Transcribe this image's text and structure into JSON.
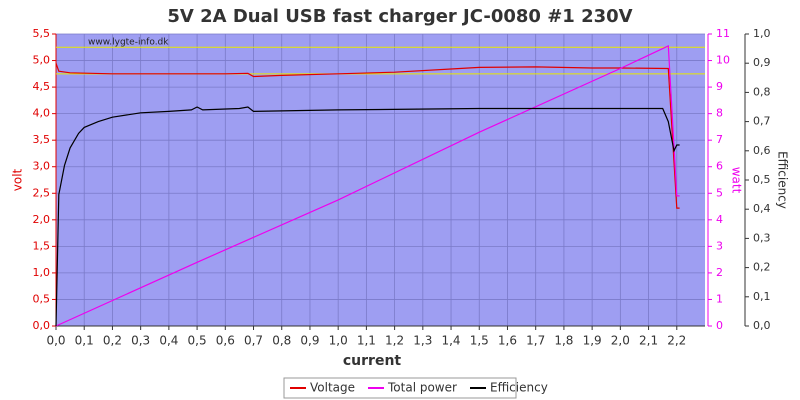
{
  "chart_data": {
    "type": "line",
    "title": "5V 2A Dual USB fast charger JC-0080 #1 230V",
    "watermark": "www.lygte-info.dk",
    "xlabel": "current",
    "ylabel": "volt",
    "y2label": "watt",
    "y3label": "Efficiency",
    "xlim": [
      0,
      2.3
    ],
    "ylim": [
      0,
      5.5
    ],
    "y2lim": [
      0,
      11
    ],
    "y3lim": [
      0,
      1.0
    ],
    "grid": true,
    "background": "#9e9ef2",
    "reference_lines": {
      "color": "#e8e800",
      "values": [
        5.25,
        4.75
      ]
    },
    "xticks": [
      {
        "value": 0,
        "label": "0,0"
      },
      {
        "value": 0.1,
        "label": "0,1"
      },
      {
        "value": 0.2,
        "label": "0,2"
      },
      {
        "value": 0.3,
        "label": "0,3"
      },
      {
        "value": 0.4,
        "label": "0,4"
      },
      {
        "value": 0.5,
        "label": "0,5"
      },
      {
        "value": 0.6,
        "label": "0,6"
      },
      {
        "value": 0.7,
        "label": "0,7"
      },
      {
        "value": 0.8,
        "label": "0,8"
      },
      {
        "value": 0.9,
        "label": "0,9"
      },
      {
        "value": 1.0,
        "label": "1,0"
      },
      {
        "value": 1.1,
        "label": "1,1"
      },
      {
        "value": 1.2,
        "label": "1,2"
      },
      {
        "value": 1.3,
        "label": "1,3"
      },
      {
        "value": 1.4,
        "label": "1,4"
      },
      {
        "value": 1.5,
        "label": "1,5"
      },
      {
        "value": 1.6,
        "label": "1,6"
      },
      {
        "value": 1.7,
        "label": "1,7"
      },
      {
        "value": 1.8,
        "label": "1,8"
      },
      {
        "value": 1.9,
        "label": "1,9"
      },
      {
        "value": 2.0,
        "label": "2,0"
      },
      {
        "value": 2.1,
        "label": "2,1"
      },
      {
        "value": 2.2,
        "label": "2,2"
      }
    ],
    "yticks": [
      {
        "value": 0,
        "label": "0,0"
      },
      {
        "value": 0.5,
        "label": "0,5"
      },
      {
        "value": 1.0,
        "label": "1,0"
      },
      {
        "value": 1.5,
        "label": "1,5"
      },
      {
        "value": 2.0,
        "label": "2,0"
      },
      {
        "value": 2.5,
        "label": "2,5"
      },
      {
        "value": 3.0,
        "label": "3,0"
      },
      {
        "value": 3.5,
        "label": "3,5"
      },
      {
        "value": 4.0,
        "label": "4,0"
      },
      {
        "value": 4.5,
        "label": "4,5"
      },
      {
        "value": 5.0,
        "label": "5,0"
      },
      {
        "value": 5.5,
        "label": "5,5"
      }
    ],
    "y2ticks": [
      0,
      1,
      2,
      3,
      4,
      5,
      6,
      7,
      8,
      9,
      10,
      11
    ],
    "y3ticks": [
      {
        "value": 0,
        "label": "0,0"
      },
      {
        "value": 0.1,
        "label": "0,1"
      },
      {
        "value": 0.2,
        "label": "0,2"
      },
      {
        "value": 0.3,
        "label": "0,3"
      },
      {
        "value": 0.4,
        "label": "0,4"
      },
      {
        "value": 0.5,
        "label": "0,5"
      },
      {
        "value": 0.6,
        "label": "0,6"
      },
      {
        "value": 0.7,
        "label": "0,7"
      },
      {
        "value": 0.8,
        "label": "0,8"
      },
      {
        "value": 0.9,
        "label": "0,9"
      },
      {
        "value": 1.0,
        "label": "1,0"
      }
    ],
    "series": [
      {
        "name": "Voltage",
        "color": "#e00000",
        "axis": "y",
        "x": [
          0,
          0.01,
          0.05,
          0.2,
          0.6,
          0.68,
          0.7,
          0.8,
          1.0,
          1.2,
          1.4,
          1.5,
          1.7,
          1.9,
          2.0,
          2.17,
          2.2,
          2.21
        ],
        "values": [
          4.95,
          4.8,
          4.77,
          4.75,
          4.75,
          4.76,
          4.7,
          4.72,
          4.75,
          4.78,
          4.84,
          4.87,
          4.88,
          4.86,
          4.86,
          4.85,
          2.22,
          2.22
        ]
      },
      {
        "name": "Total power",
        "color": "#ee00ee",
        "axis": "y2",
        "x": [
          0,
          0.5,
          1.0,
          1.5,
          2.0,
          2.17,
          2.2,
          2.21
        ],
        "values": [
          0,
          2.4,
          4.75,
          7.3,
          9.7,
          10.55,
          4.9,
          4.9
        ]
      },
      {
        "name": "Efficiency",
        "color": "#000000",
        "axis": "y3",
        "x": [
          0,
          0.01,
          0.03,
          0.05,
          0.08,
          0.1,
          0.15,
          0.2,
          0.3,
          0.4,
          0.48,
          0.5,
          0.52,
          0.65,
          0.68,
          0.7,
          1.0,
          1.5,
          2.0,
          2.15,
          2.17,
          2.19,
          2.2,
          2.21
        ],
        "values": [
          0,
          0.45,
          0.55,
          0.61,
          0.66,
          0.68,
          0.7,
          0.715,
          0.73,
          0.735,
          0.74,
          0.75,
          0.74,
          0.745,
          0.75,
          0.735,
          0.74,
          0.745,
          0.745,
          0.745,
          0.7,
          0.6,
          0.62,
          0.62
        ]
      }
    ]
  }
}
